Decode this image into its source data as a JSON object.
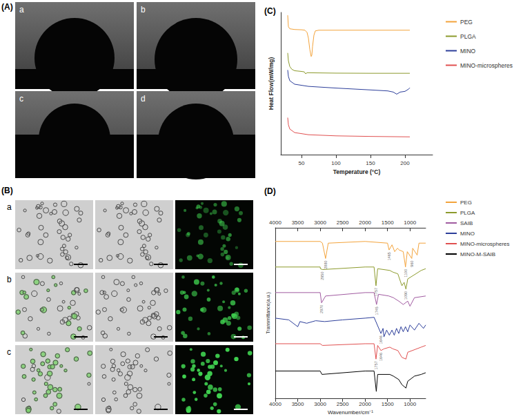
{
  "figure": {
    "panels": [
      {
        "label": "(A)",
        "images": [
          "a",
          "b",
          "c",
          "d"
        ]
      },
      {
        "label": "(B)",
        "rows": [
          "a",
          "b",
          "c"
        ]
      }
    ]
  },
  "chart_data": [
    {
      "type": "line",
      "title": "(C)",
      "x_label": "Temperature (°C)",
      "y_label": "Heat Flow(mW/mg)",
      "xlim": [
        20,
        240
      ],
      "xticks": [
        50,
        100,
        150,
        200
      ],
      "ylim": [
        0,
        100
      ],
      "tick_labels": "x",
      "grid": false,
      "legend": "right",
      "series": [
        {
          "name": "PEG",
          "color": "#f3a33b",
          "x": [
            30,
            31,
            33,
            40,
            50,
            55,
            58,
            60,
            62,
            64,
            65,
            66,
            68,
            70,
            75,
            100,
            150,
            200,
            207
          ],
          "values": [
            98,
            90,
            88.5,
            88,
            87.8,
            87.5,
            86,
            82,
            74,
            69,
            70,
            76,
            84,
            87,
            87.5,
            87.5,
            87.5,
            87.5,
            87.5
          ]
        },
        {
          "name": "PLGA",
          "color": "#8c9a2c",
          "x": [
            30,
            31,
            33,
            36,
            40,
            50,
            54,
            56,
            58,
            70,
            100,
            150,
            207
          ],
          "values": [
            71.5,
            66,
            62,
            60,
            59,
            58.5,
            58.2,
            56.8,
            57.6,
            57.5,
            57.3,
            57.2,
            57.2
          ]
        },
        {
          "name": "MINO",
          "color": "#2c3e9a",
          "x": [
            30,
            31,
            33,
            40,
            60,
            100,
            150,
            175,
            183,
            188,
            193,
            200,
            205,
            207
          ],
          "values": [
            59.5,
            55,
            52,
            49.5,
            48,
            46.8,
            45.5,
            44.8,
            44,
            42.5,
            44,
            44.5,
            46,
            47
          ]
        },
        {
          "name": "MINO-microspheres",
          "color": "#e05050",
          "x": [
            30,
            31,
            33,
            40,
            60,
            100,
            150,
            207
          ],
          "values": [
            26,
            21,
            18,
            15.5,
            14,
            13.2,
            12.8,
            12.5
          ]
        }
      ]
    },
    {
      "type": "line",
      "title": "(D)",
      "x_label": "Wavenumber/cm⁻¹",
      "y_label": "Transmittance(a.u.)",
      "xlim": [
        4000,
        650
      ],
      "xticks": [
        4000,
        3500,
        3000,
        2500,
        2000,
        1500,
        1000
      ],
      "ylim": [
        0,
        100
      ],
      "tick_labels": "x",
      "grid": false,
      "legend": "right",
      "series": [
        {
          "name": "PEG",
          "color": "#f3a33b",
          "x": [
            4000,
            3000,
            2950,
            2880,
            2820,
            2000,
            1500,
            1465,
            1400,
            1340,
            1280,
            1240,
            1150,
            1100,
            1060,
            960,
            940,
            840,
            800,
            650
          ],
          "values": [
            92,
            92,
            91,
            82,
            91,
            92,
            91,
            87,
            90,
            86,
            88,
            87,
            86,
            77,
            86,
            82,
            88,
            84,
            91,
            91
          ],
          "peaks": [
            2880,
            1465,
            1100,
            960
          ]
        },
        {
          "name": "PLGA",
          "color": "#8c9a2c",
          "x": [
            4000,
            3000,
            2995,
            2950,
            2000,
            1800,
            1757,
            1720,
            1450,
            1380,
            1270,
            1180,
            1130,
            1090,
            1050,
            750,
            650
          ],
          "values": [
            77,
            77,
            76,
            75.5,
            77,
            77,
            66,
            76,
            75,
            74,
            73,
            66,
            68,
            64,
            70,
            75,
            76
          ],
          "peaks": [
            2950,
            1757,
            1090
          ]
        },
        {
          "name": "SAIB",
          "color": "#a05aa0",
          "x": [
            4000,
            3000,
            2970,
            2880,
            2000,
            1800,
            1745,
            1700,
            1470,
            1370,
            1250,
            1150,
            1050,
            1000,
            900,
            650
          ],
          "values": [
            62,
            62,
            56,
            60,
            62,
            62,
            55,
            61,
            60,
            59,
            57,
            55,
            57,
            54,
            59,
            60
          ],
          "peaks": [
            2970,
            1745
          ]
        },
        {
          "name": "MINO",
          "color": "#2c3e9a",
          "x": [
            4000,
            3700,
            3500,
            3450,
            3300,
            3100,
            2900,
            2500,
            2000,
            1800,
            1646,
            1600,
            1580,
            1520,
            1460,
            1400,
            1350,
            1300,
            1250,
            1200,
            1150,
            1100,
            1050,
            1000,
            900,
            800,
            700,
            650
          ],
          "values": [
            47,
            46,
            42,
            45,
            44,
            45.5,
            45,
            46,
            47,
            47.5,
            38,
            41,
            36,
            40,
            37,
            40,
            37,
            41,
            38,
            42,
            39,
            42,
            39,
            43,
            40,
            44,
            41,
            43
          ],
          "peaks": [
            1646
          ]
        },
        {
          "name": "MINO-microspheres",
          "color": "#e05050",
          "x": [
            4000,
            3000,
            2950,
            2000,
            1800,
            1757,
            1720,
            1646,
            1580,
            1450,
            1380,
            1270,
            1180,
            1090,
            1050,
            750,
            650
          ],
          "values": [
            32,
            32,
            31,
            32,
            32,
            23,
            31,
            28,
            29,
            30,
            29,
            28,
            24,
            23,
            27,
            30,
            31
          ],
          "peaks": [
            1757,
            1646
          ]
        },
        {
          "name": "MINO-M-SAIB",
          "color": "#000000",
          "x": [
            4000,
            3000,
            2960,
            2000,
            1800,
            1750,
            1720,
            1450,
            1370,
            1250,
            1180,
            1090,
            1050,
            900,
            750,
            650
          ],
          "values": [
            16,
            16,
            14,
            16,
            16,
            4,
            14,
            14,
            13,
            11,
            8,
            6,
            10,
            13,
            14,
            15
          ]
        }
      ]
    }
  ]
}
